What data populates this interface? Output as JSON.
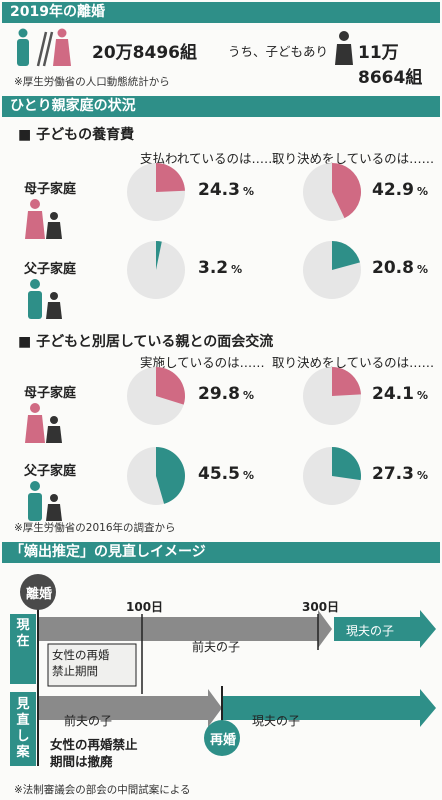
{
  "colors": {
    "teal": "#2e8f88",
    "pink": "#d06a83",
    "grey_pie": "#e6e6e6",
    "arrow_grey": "#8a8a8a"
  },
  "section1": {
    "title": "2019年の離婚",
    "divorces": "20万8496組",
    "with_children_label": "うち、子どもあり",
    "with_children": "11万8664組",
    "source": "※厚生労働省の人口動態統計から"
  },
  "section2": {
    "title": "ひとり親家庭の状況",
    "child_support": {
      "heading": "■ 子どもの養育費",
      "col1": "支払われているのは……",
      "col2": "取り決めをしているのは……",
      "rows": [
        {
          "label": "母子家庭",
          "values": [
            24.3,
            42.9
          ],
          "texts": [
            "24.3",
            "42.9"
          ],
          "color": "pink"
        },
        {
          "label": "父子家庭",
          "values": [
            3.2,
            20.8
          ],
          "texts": [
            "3.2",
            "20.8"
          ],
          "color": "teal"
        }
      ]
    },
    "visitation": {
      "heading": "■ 子どもと別居している親との面会交流",
      "col1": "実施しているのは……",
      "col2": "取り決めをしているのは……",
      "rows": [
        {
          "label": "母子家庭",
          "values": [
            29.8,
            24.1
          ],
          "texts": [
            "29.8",
            "24.1"
          ],
          "color": "pink"
        },
        {
          "label": "父子家庭",
          "values": [
            45.5,
            27.3
          ],
          "texts": [
            "45.5",
            "27.3"
          ],
          "color": "teal"
        }
      ]
    },
    "pct_unit": "%",
    "source": "※厚生労働省の2016年の調査から"
  },
  "section3": {
    "title": "「嫡出推定」の見直しイメージ",
    "divorce_badge": "離婚",
    "day100": "100日",
    "day300": "300日",
    "current_label": "現在",
    "current_ban": "女性の再婚\n禁止期間",
    "prev_husband": "前夫の子",
    "current_husband": "現夫の子",
    "proposal_label": "見直し案",
    "proposal_prev": "前夫の子",
    "proposal_current": "現夫の子",
    "proposal_note": "女性の再婚禁止\n期間は撤廃",
    "remarriage_badge": "再婚",
    "source": "※法制審議会の部会の中間試案による"
  }
}
